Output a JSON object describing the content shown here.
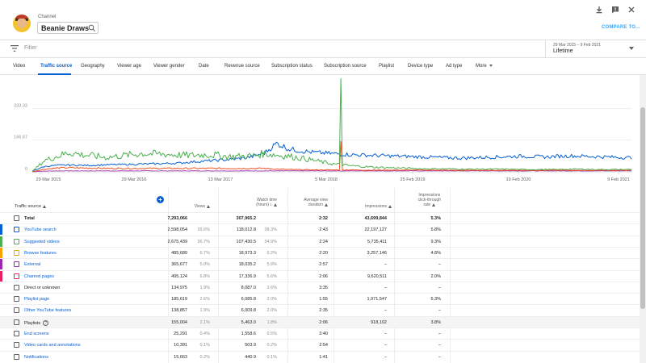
{
  "header": {
    "channel_caption": "Channel",
    "channel_name": "Beanie Draws",
    "compare_label": "COMPARE TO..."
  },
  "filter": {
    "placeholder": "Filter"
  },
  "date": {
    "range": "29 Mar 2015 – 9 Feb 2021",
    "preset": "Lifetime"
  },
  "tabs": [
    "Video",
    "Traffic source",
    "Geography",
    "Viewer age",
    "Viewer gender",
    "Date",
    "Revenue source",
    "Subscription status",
    "Subscription source",
    "Playlist",
    "Device type",
    "Ad type",
    "More"
  ],
  "active_tab": 1,
  "chart_data": {
    "type": "line",
    "y_ticks": [
      "0",
      "166.67",
      "333.33"
    ],
    "ylim": [
      0,
      500
    ],
    "x_ticks": [
      "29 Mar 2015",
      "29 Mar 2016",
      "13 Mar 2017",
      "5 Mar 2018",
      "25 Feb 2019",
      "19 Feb 2020",
      "9 Feb 2021"
    ],
    "series": [
      {
        "color": "#065fd4",
        "values": [
          4,
          28,
          34,
          36,
          34,
          34,
          37,
          38,
          39,
          41,
          42,
          44,
          46,
          52,
          56,
          60,
          64,
          70,
          80,
          100,
          150,
          120,
          110,
          102,
          98,
          94,
          90,
          88,
          86,
          84,
          82,
          80,
          78,
          76,
          74,
          72,
          74,
          76,
          78,
          80,
          82,
          80,
          78,
          82,
          84,
          82,
          80,
          78,
          76,
          74
        ]
      },
      {
        "color": "#4caf50",
        "values": [
          2,
          60,
          80,
          102,
          90,
          84,
          76,
          82,
          90,
          96,
          94,
          92,
          88,
          86,
          90,
          88,
          80,
          82,
          84,
          96,
          88,
          82,
          72,
          60,
          48,
          38,
          32,
          28,
          24,
          22,
          20,
          18,
          16,
          16,
          16,
          14,
          14,
          14,
          14,
          14,
          12,
          12,
          12,
          12,
          14,
          14,
          12,
          12,
          12,
          12
        ]
      },
      {
        "color": "#f4511e",
        "values": [
          1,
          14,
          20,
          22,
          20,
          20,
          18,
          18,
          18,
          18,
          18,
          18,
          18,
          18,
          18,
          18,
          18,
          18,
          18,
          18,
          14,
          12,
          11,
          10,
          10,
          10,
          10,
          9,
          9,
          9,
          9,
          9,
          9,
          9,
          8,
          8,
          8,
          8,
          8,
          8,
          8,
          8,
          8,
          8,
          8,
          8,
          8,
          8,
          8,
          8
        ]
      },
      {
        "color": "#9c27b0",
        "values": [
          0,
          4,
          5,
          5,
          5,
          5,
          5,
          5,
          5,
          5,
          5,
          5,
          5,
          5,
          5,
          5,
          5,
          5,
          5,
          5,
          5,
          5,
          5,
          5,
          5,
          5,
          5,
          5,
          5,
          5,
          5,
          5,
          5,
          5,
          5,
          5,
          5,
          5,
          5,
          5,
          5,
          5,
          5,
          5,
          5,
          5,
          5,
          5,
          5,
          5
        ]
      }
    ],
    "spikes": [
      {
        "series": 1,
        "at": 0.515,
        "value": 490
      },
      {
        "series": 2,
        "at": 0.515,
        "value": 160
      }
    ]
  },
  "table": {
    "headers": {
      "source": "Traffic source",
      "views": "Views",
      "watch_time_1": "Watch time",
      "watch_time_2": "(hours)",
      "avd_1": "Average view",
      "avd_2": "duration",
      "impressions": "Impressions",
      "ctr_1": "Impressions",
      "ctr_2": "click-through",
      "ctr_3": "rate"
    },
    "rows": [
      {
        "name": "Total",
        "views": "7,293,066",
        "views_pct": "",
        "watch": "307,965.2",
        "watch_pct": "",
        "avd": "2:32",
        "impr": "43,699,844",
        "ctr": "5.3%",
        "color": "",
        "link": false,
        "total": true
      },
      {
        "name": "YouTube search",
        "views": "2,598,054",
        "views_pct": "35.6%",
        "watch": "118,012.8",
        "watch_pct": "38.3%",
        "avd": "2:43",
        "impr": "22,197,127",
        "ctr": "5.8%",
        "color": "#065fd4",
        "link": true
      },
      {
        "name": "Suggested videos",
        "views": "2,675,439",
        "views_pct": "36.7%",
        "watch": "107,430.5",
        "watch_pct": "34.9%",
        "avd": "2:24",
        "impr": "5,735,411",
        "ctr": "9.3%",
        "color": "#4caf50",
        "link": true
      },
      {
        "name": "Browse features",
        "views": "485,689",
        "views_pct": "6.7%",
        "watch": "18,973.3",
        "watch_pct": "6.2%",
        "avd": "2:20",
        "impr": "3,257,146",
        "ctr": "4.8%",
        "color": "#f4a300",
        "link": true
      },
      {
        "name": "External",
        "views": "365,677",
        "views_pct": "5.0%",
        "watch": "18,035.2",
        "watch_pct": "5.9%",
        "avd": "2:57",
        "impr": "–",
        "ctr": "–",
        "color": "#9c27b0",
        "link": true
      },
      {
        "name": "Channel pages",
        "views": "495,124",
        "views_pct": "6.8%",
        "watch": "17,336.9",
        "watch_pct": "5.6%",
        "avd": "2:06",
        "impr": "9,620,511",
        "ctr": "2.0%",
        "color": "#e91e63",
        "link": true
      },
      {
        "name": "Direct or unknown",
        "views": "134,975",
        "views_pct": "1.9%",
        "watch": "8,087.0",
        "watch_pct": "2.6%",
        "avd": "3:35",
        "impr": "–",
        "ctr": "–",
        "color": "",
        "link": false
      },
      {
        "name": "Playlist page",
        "views": "185,619",
        "views_pct": "2.6%",
        "watch": "6,085.8",
        "watch_pct": "2.0%",
        "avd": "1:55",
        "impr": "1,971,547",
        "ctr": "5.3%",
        "color": "",
        "link": true
      },
      {
        "name": "Other YouTube features",
        "views": "138,857",
        "views_pct": "1.9%",
        "watch": "6,009.8",
        "watch_pct": "2.0%",
        "avd": "2:35",
        "impr": "–",
        "ctr": "–",
        "color": "",
        "link": true
      },
      {
        "name": "Playlists",
        "views": "155,004",
        "views_pct": "2.1%",
        "watch": "5,463.0",
        "watch_pct": "1.8%",
        "avd": "2:06",
        "impr": "918,102",
        "ctr": "3.8%",
        "color": "",
        "link": false,
        "help": true,
        "highlight": true
      },
      {
        "name": "End screens",
        "views": "25,291",
        "views_pct": "0.4%",
        "watch": "1,558.6",
        "watch_pct": "0.5%",
        "avd": "3:40",
        "impr": "–",
        "ctr": "–",
        "color": "",
        "link": true
      },
      {
        "name": "Video cards and annotations",
        "views": "10,391",
        "views_pct": "0.1%",
        "watch": "503.9",
        "watch_pct": "0.2%",
        "avd": "2:54",
        "impr": "–",
        "ctr": "–",
        "color": "",
        "link": true
      },
      {
        "name": "Notifications",
        "views": "15,663",
        "views_pct": "0.2%",
        "watch": "440.9",
        "watch_pct": "0.1%",
        "avd": "1:41",
        "impr": "–",
        "ctr": "–",
        "color": "",
        "link": true
      }
    ]
  }
}
